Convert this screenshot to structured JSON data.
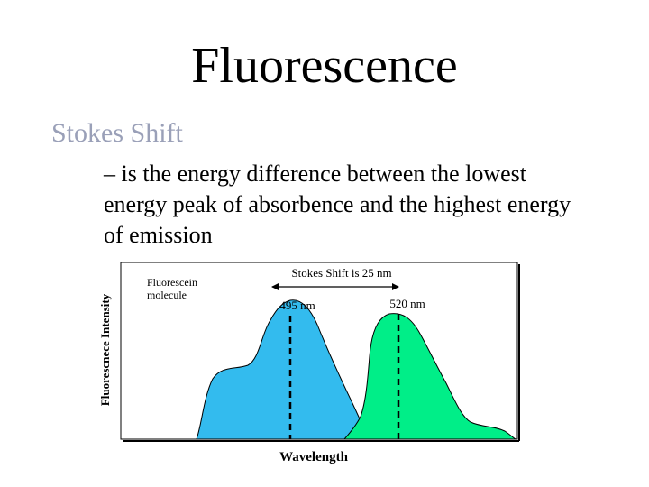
{
  "slide": {
    "title": "Fluorescence",
    "subtitle": "Stokes Shift",
    "bullet_dash": "–",
    "bullet_text": "is the energy difference between the lowest energy peak of absorbence and the highest energy of emission"
  },
  "figure": {
    "y_axis_label": "Fluorescnece Intensity",
    "x_axis_label": "Wavelength",
    "molecule_label_line1": "Fluorescein",
    "molecule_label_line2": "molecule",
    "shift_label": "Stokes Shift is 25 nm",
    "peak1_label": "495 nm",
    "peak2_label": "520 nm",
    "absorbance_color": "#33bbee",
    "emission_color": "#00ee88"
  }
}
